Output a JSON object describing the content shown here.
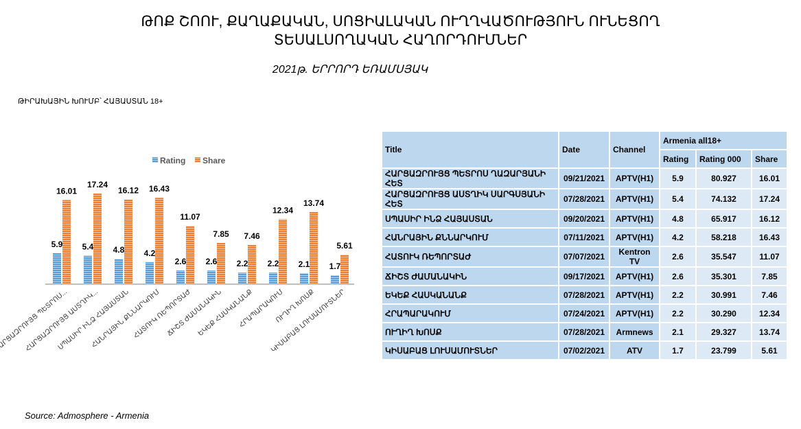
{
  "title_line1": "ԹՈՔ  ՇՈՈՒ, ՔԱՂԱՔԱԿԱՆ, ՍՈՑԻԱԼԱԿԱՆ ՈՒՂՂՎԱԾՈՒԹՅՈՒՆ ՈՒՆԵՑՈՂ",
  "title_line2": "ՏԵՍԱԼՍՈՂԱԿԱՆ ՀԱՂՈՐԴՈՒՄՆԵՐ",
  "subtitle": "2021թ. ԵՐՐՈՐԴ ԵՌԱՄՍՅԱԿ",
  "target_group": "ԹԻՐԱԽԱՅԻՆ ԽՈՒՄԲ՝  ՀԱՅԱՍՏԱՆ 18+",
  "source": "Source: Admosphere - Armenia",
  "chart_data": {
    "type": "bar",
    "categories": [
      "ՀԱՐՑԱԶՐՈՒՅՑ ՊԵՏՐՈՍ...",
      "ՀԱՐՑԱԶՐՈՒՅՑ ԱՍՏՂԻԿ...",
      "ՍՊԱՍԻՐ ԻՆՁ ՀԱՅԱՍՏԱՆ",
      "ՀԱՆՐԱՅԻՆ ՔՆՆԱՐԿՈՒՄ",
      "ՀԱՏՈՒԿ ՌԵՊՈՐՏԱԺ",
      "ՃԻՇՏ ԺԱՄԱՆԱԿԻՆ",
      "ԵԿԵՔ ՀԱՍԿԱՆԱՆՔ",
      "ՀՐԱՊԱՐԱԿՈՒՄ",
      "ՈՒՂԻՂ ԽՈՍՔ",
      "ԿԻՍԱԲԱՑ ԼՈՒՍԱՄՈՒՏՆԵՐ"
    ],
    "series": [
      {
        "name": "Rating",
        "color": "#5b9bd5",
        "values": [
          5.9,
          5.4,
          4.8,
          4.2,
          2.6,
          2.6,
          2.2,
          2.2,
          2.1,
          1.7
        ]
      },
      {
        "name": "Share",
        "color": "#ed7d31",
        "values": [
          16.01,
          17.24,
          16.12,
          16.43,
          11.07,
          7.85,
          7.46,
          12.34,
          13.74,
          5.61
        ]
      }
    ],
    "legend": "top-center",
    "ylim": [
      0,
      18
    ],
    "grid": false
  },
  "table": {
    "headers": {
      "title": "Title",
      "date": "Date",
      "channel": "Channel",
      "group": "Armenia all18+",
      "rating": "Rating",
      "rating000": "Rating 000",
      "share": "Share"
    },
    "rows": [
      [
        "ՀԱՐՑԱԶՐՈՒՅՑ  ՊԵՏՐՈՍ  ՂԱԶԱՐՅԱՆԻ ՀԵՏ",
        "09/21/2021",
        "APTV(H1)",
        "5.9",
        "80.927",
        "16.01"
      ],
      [
        "ՀԱՐՑԱԶՐՈՒՅՑ ԱՍՏՂԻԿ ՍԱՐԳՍՅԱՆԻ ՀԵՏ",
        "07/28/2021",
        "APTV(H1)",
        "5.4",
        "74.132",
        "17.24"
      ],
      [
        "ՍՊԱՍԻՐ ԻՆՁ ՀԱՅԱՍՏԱՆ",
        "09/20/2021",
        "APTV(H1)",
        "4.8",
        "65.917",
        "16.12"
      ],
      [
        "ՀԱՆՐԱՅԻՆ  ՔՆՆԱՐԿՈՒՄ",
        "07/11/2021",
        "APTV(H1)",
        "4.2",
        "58.218",
        "16.43"
      ],
      [
        "ՀԱՏՈՒԿ ՌԵՊՈՐՏԱԺ",
        "07/07/2021",
        "Kentron TV",
        "2.6",
        "35.547",
        "11.07"
      ],
      [
        "ՃԻՇՏ ԺԱՄԱՆԱԿԻՆ",
        "09/17/2021",
        "APTV(H1)",
        "2.6",
        "35.301",
        "7.85"
      ],
      [
        "ԵԿԵՔ  ՀԱՍԿԱՆԱՆՔ",
        "07/28/2021",
        "APTV(H1)",
        "2.2",
        "30.991",
        "7.46"
      ],
      [
        "ՀՐԱՊԱՐԱԿՈՒՄ",
        "07/24/2021",
        "APTV(H1)",
        "2.2",
        "30.290",
        "12.34"
      ],
      [
        "ՈՒՂԻՂ ԽՈՍՔ",
        "07/28/2021",
        "Armnews",
        "2.1",
        "29.327",
        "13.74"
      ],
      [
        "ԿԻՍԱԲԱՑ  ԼՈՒՍԱՄՈՒՏՆԵՐ",
        "07/02/2021",
        "ATV",
        "1.7",
        "23.799",
        "5.61"
      ]
    ]
  }
}
